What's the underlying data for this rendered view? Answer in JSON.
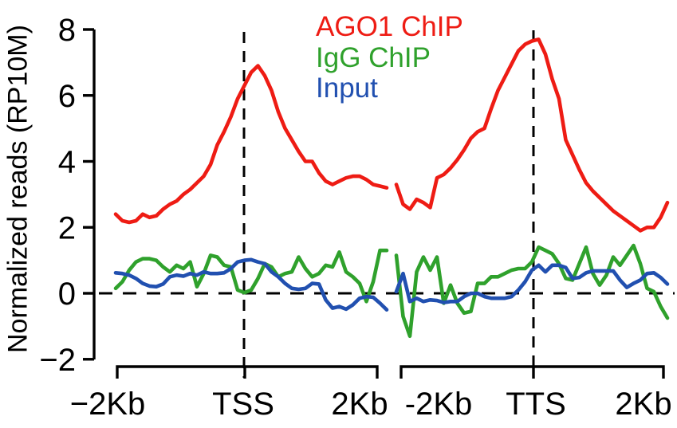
{
  "chart_data": {
    "type": "line",
    "title": "",
    "xlabel": "",
    "ylabel": "Normalized reads (RP10M)",
    "ylim": [
      -2,
      8
    ],
    "yticks": [
      8,
      6,
      4,
      2,
      0,
      -2
    ],
    "ytick_labels": [
      "8",
      "6",
      "4",
      "2",
      "0",
      "−2"
    ],
    "grid": false,
    "legend_position": "top-center",
    "legend": [
      {
        "label": "AGO1 ChIP",
        "color": "#ee1c14"
      },
      {
        "label": "IgG ChIP",
        "color": "#2fa12c"
      },
      {
        "label": "Input",
        "color": "#2150b0"
      }
    ],
    "reference_lines": {
      "horizontal_at_y": 0,
      "vertical_at": [
        "TSS",
        "TTS"
      ],
      "style": "dashed"
    },
    "x_sampling_note": "values sampled every 100 bp from -2000 to +2000 relative to anchor",
    "panels": [
      {
        "anchor": "TSS",
        "x_domain_bp": [
          -2000,
          2000
        ],
        "xtick_labels": [
          "−2Kb",
          "TSS",
          "2Kb"
        ],
        "series": [
          {
            "name": "AGO1 ChIP",
            "color": "#ee1c14",
            "values": [
              2.4,
              2.2,
              2.15,
              2.2,
              2.4,
              2.3,
              2.35,
              2.55,
              2.7,
              2.8,
              3.0,
              3.15,
              3.35,
              3.55,
              3.9,
              4.5,
              4.9,
              5.35,
              5.9,
              6.3,
              6.7,
              6.9,
              6.6,
              6.15,
              5.5,
              5.0,
              4.65,
              4.3,
              4.0,
              4.0,
              3.65,
              3.4,
              3.3,
              3.4,
              3.5,
              3.55,
              3.55,
              3.45,
              3.3,
              3.25,
              3.2
            ]
          },
          {
            "name": "IgG ChIP",
            "color": "#2fa12c",
            "values": [
              0.15,
              0.35,
              0.7,
              0.95,
              1.05,
              1.05,
              1.0,
              0.8,
              0.65,
              0.85,
              0.75,
              0.95,
              0.2,
              0.6,
              1.15,
              1.1,
              0.85,
              0.8,
              0.1,
              0.02,
              0.1,
              0.45,
              0.9,
              0.8,
              0.5,
              0.6,
              0.65,
              1.1,
              0.75,
              0.5,
              0.6,
              0.85,
              0.8,
              1.25,
              0.65,
              0.5,
              0.3,
              -0.25,
              0.35,
              1.3,
              1.3
            ]
          },
          {
            "name": "Input",
            "color": "#2150b0",
            "values": [
              0.62,
              0.6,
              0.55,
              0.45,
              0.3,
              0.22,
              0.2,
              0.28,
              0.5,
              0.55,
              0.52,
              0.6,
              0.55,
              0.65,
              0.6,
              0.6,
              0.62,
              0.75,
              0.95,
              1.0,
              1.02,
              0.95,
              0.9,
              0.65,
              0.5,
              0.3,
              0.15,
              0.12,
              0.15,
              0.3,
              0.28,
              -0.2,
              -0.45,
              -0.4,
              -0.48,
              -0.35,
              -0.15,
              -0.1,
              -0.12,
              -0.3,
              -0.5
            ]
          }
        ]
      },
      {
        "anchor": "TTS",
        "x_domain_bp": [
          -2000,
          2000
        ],
        "xtick_labels": [
          "-2Kb",
          "TTS",
          "2Kb"
        ],
        "series": [
          {
            "name": "AGO1 ChIP",
            "color": "#ee1c14",
            "values": [
              3.3,
              2.7,
              2.55,
              2.85,
              2.75,
              2.6,
              3.5,
              3.6,
              3.8,
              4.05,
              4.35,
              4.7,
              4.9,
              5.0,
              5.6,
              6.15,
              6.55,
              6.95,
              7.35,
              7.55,
              7.65,
              7.7,
              7.25,
              6.5,
              5.9,
              4.65,
              4.2,
              3.75,
              3.35,
              3.1,
              2.9,
              2.7,
              2.5,
              2.35,
              2.2,
              2.05,
              1.9,
              2.0,
              2.0,
              2.3,
              2.75
            ]
          },
          {
            "name": "IgG ChIP",
            "color": "#2fa12c",
            "values": [
              1.15,
              -0.7,
              -1.3,
              0.65,
              1.1,
              0.7,
              1.1,
              -0.3,
              0.25,
              -0.3,
              -0.6,
              -0.55,
              0.3,
              0.3,
              0.5,
              0.5,
              0.6,
              0.7,
              0.75,
              0.75,
              0.95,
              1.4,
              1.3,
              1.2,
              0.9,
              0.45,
              0.4,
              0.9,
              1.4,
              0.6,
              0.25,
              0.55,
              1.1,
              0.85,
              1.15,
              1.45,
              0.9,
              0.15,
              0.05,
              -0.4,
              -0.75
            ]
          },
          {
            "name": "Input",
            "color": "#2150b0",
            "values": [
              0.05,
              0.6,
              -0.25,
              -0.15,
              -0.25,
              -0.2,
              -0.22,
              -0.28,
              -0.25,
              -0.25,
              -0.1,
              0.0,
              0.0,
              -0.1,
              -0.15,
              -0.15,
              -0.15,
              -0.1,
              0.1,
              0.35,
              0.7,
              0.85,
              0.65,
              0.85,
              0.85,
              0.78,
              0.45,
              0.48,
              0.62,
              0.68,
              0.68,
              0.68,
              0.68,
              0.4,
              0.18,
              0.3,
              0.4,
              0.6,
              0.62,
              0.48,
              0.28
            ]
          }
        ]
      }
    ]
  }
}
